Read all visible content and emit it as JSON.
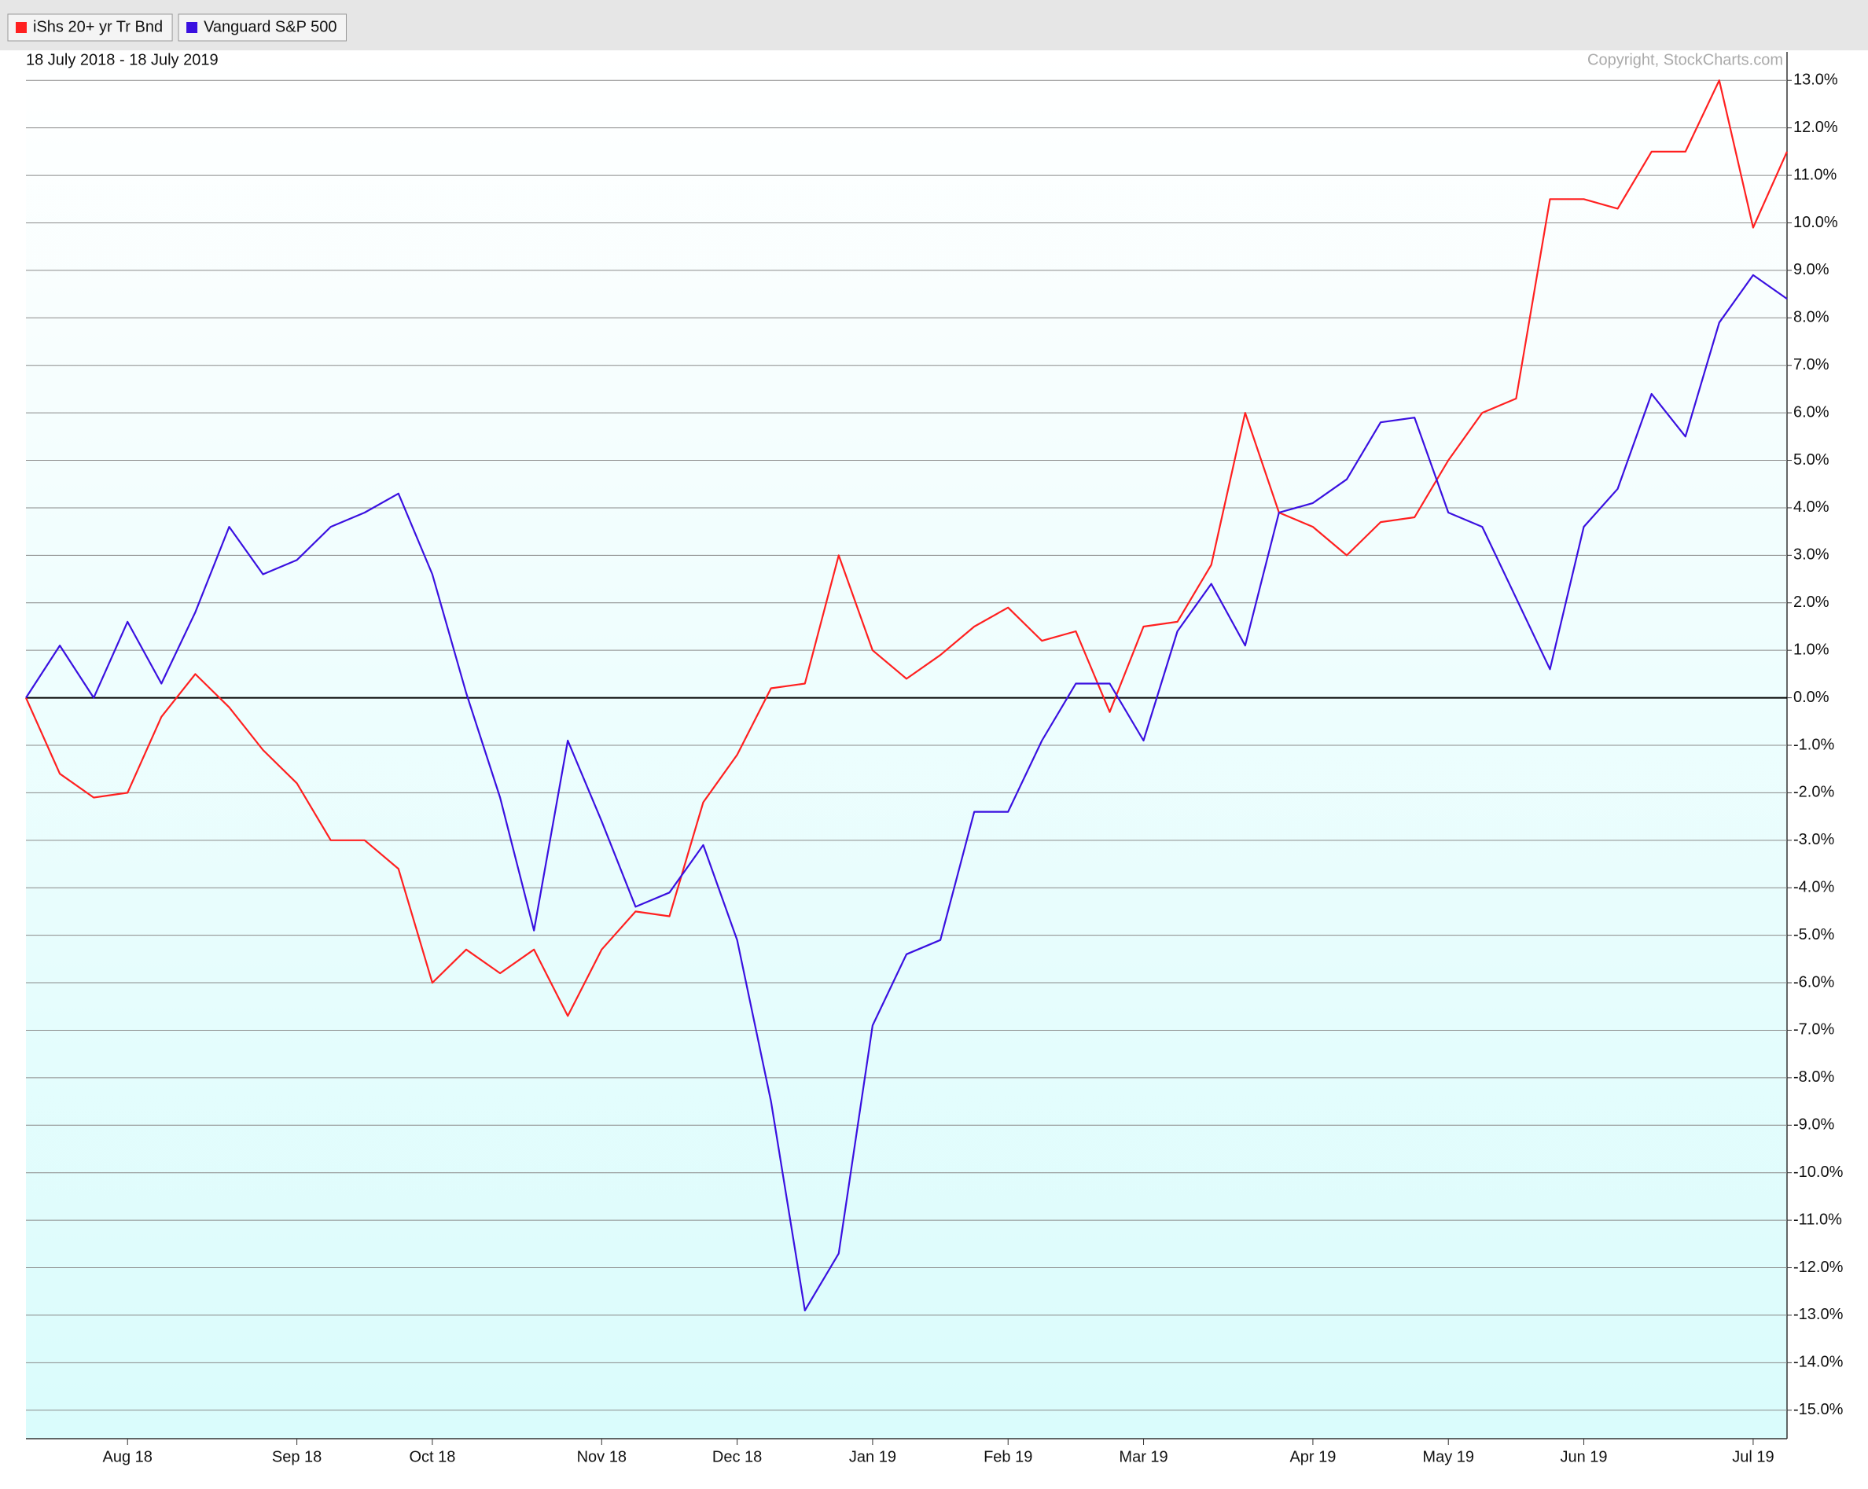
{
  "chart_data": {
    "type": "line",
    "subtitle": "18 July 2018 - 18 July 2019",
    "source": "Copyright, StockCharts.com",
    "categories": [
      null,
      null,
      null,
      "Aug 18",
      null,
      null,
      null,
      null,
      "Sep 18",
      null,
      null,
      null,
      "Oct 18",
      null,
      null,
      null,
      null,
      "Nov 18",
      null,
      null,
      null,
      "Dec 18",
      null,
      null,
      null,
      "Jan 19",
      null,
      null,
      null,
      "Feb 19",
      null,
      null,
      null,
      "Mar 19",
      null,
      null,
      null,
      null,
      "Apr 19",
      null,
      null,
      null,
      "May 19",
      null,
      null,
      null,
      "Jun 19",
      null,
      null,
      null,
      null,
      "Jul 19",
      null
    ],
    "series": [
      {
        "name": "iShs 20+ yr Tr Bnd",
        "color": "#ff2020",
        "values": [
          0,
          -1.6,
          -2.1,
          -2.0,
          -0.4,
          0.5,
          -0.2,
          -1.1,
          -1.8,
          -3.0,
          -3.0,
          -3.6,
          -6.0,
          -5.3,
          -5.8,
          -5.3,
          -6.7,
          -5.3,
          -4.5,
          -4.6,
          -2.2,
          -1.2,
          0.2,
          0.3,
          3.0,
          1.0,
          0.4,
          0.9,
          1.5,
          1.9,
          1.2,
          1.4,
          -0.3,
          1.5,
          1.6,
          2.8,
          6.0,
          3.9,
          3.6,
          3.0,
          3.7,
          3.8,
          5.0,
          6.0,
          6.3,
          10.5,
          10.5,
          10.3,
          11.5,
          11.5,
          13.0,
          9.9,
          11.5
        ]
      },
      {
        "name": "Vanguard S&P 500",
        "color": "#3a10e0",
        "values": [
          0,
          1.1,
          0,
          1.6,
          0.3,
          1.8,
          3.6,
          2.6,
          2.9,
          3.6,
          3.9,
          4.3,
          2.6,
          0.1,
          -2.1,
          -4.9,
          -0.9,
          -2.6,
          -4.4,
          -4.1,
          -3.1,
          -5.1,
          -8.5,
          -12.9,
          -11.7,
          -6.9,
          -5.4,
          -5.1,
          -2.4,
          -2.4,
          -0.9,
          0.3,
          0.3,
          -0.9,
          1.4,
          2.4,
          1.1,
          3.9,
          4.1,
          4.6,
          5.8,
          5.9,
          3.9,
          3.6,
          2.1,
          0.6,
          3.6,
          4.4,
          6.4,
          5.5,
          7.9,
          8.9,
          8.4
        ]
      }
    ],
    "ylim": [
      -15.6,
      13.6
    ],
    "yticks": [
      {
        "value": -15,
        "label": "-15.0%"
      },
      {
        "value": -14,
        "label": "-14.0%"
      },
      {
        "value": -13,
        "label": "-13.0%"
      },
      {
        "value": -12,
        "label": "-12.0%"
      },
      {
        "value": -11,
        "label": "-11.0%"
      },
      {
        "value": -10,
        "label": "-10.0%"
      },
      {
        "value": -9,
        "label": "-9.0%"
      },
      {
        "value": -8,
        "label": "-8.0%"
      },
      {
        "value": -7,
        "label": "-7.0%"
      },
      {
        "value": -6,
        "label": "-6.0%"
      },
      {
        "value": -5,
        "label": "-5.0%"
      },
      {
        "value": -4,
        "label": "-4.0%"
      },
      {
        "value": -3,
        "label": "-3.0%"
      },
      {
        "value": -2,
        "label": "-2.0%"
      },
      {
        "value": -1,
        "label": "-1.0%"
      },
      {
        "value": 0,
        "label": "0.0%"
      },
      {
        "value": 1,
        "label": "1.0%"
      },
      {
        "value": 2,
        "label": "2.0%"
      },
      {
        "value": 3,
        "label": "3.0%"
      },
      {
        "value": 4,
        "label": "4.0%"
      },
      {
        "value": 5,
        "label": "5.0%"
      },
      {
        "value": 6,
        "label": "6.0%"
      },
      {
        "value": 7,
        "label": "7.0%"
      },
      {
        "value": 8,
        "label": "8.0%"
      },
      {
        "value": 9,
        "label": "9.0%"
      },
      {
        "value": 10,
        "label": "10.0%"
      },
      {
        "value": 11,
        "label": "11.0%"
      },
      {
        "value": 12,
        "label": "12.0%"
      },
      {
        "value": 13,
        "label": "13.0%"
      }
    ],
    "grid": true
  }
}
